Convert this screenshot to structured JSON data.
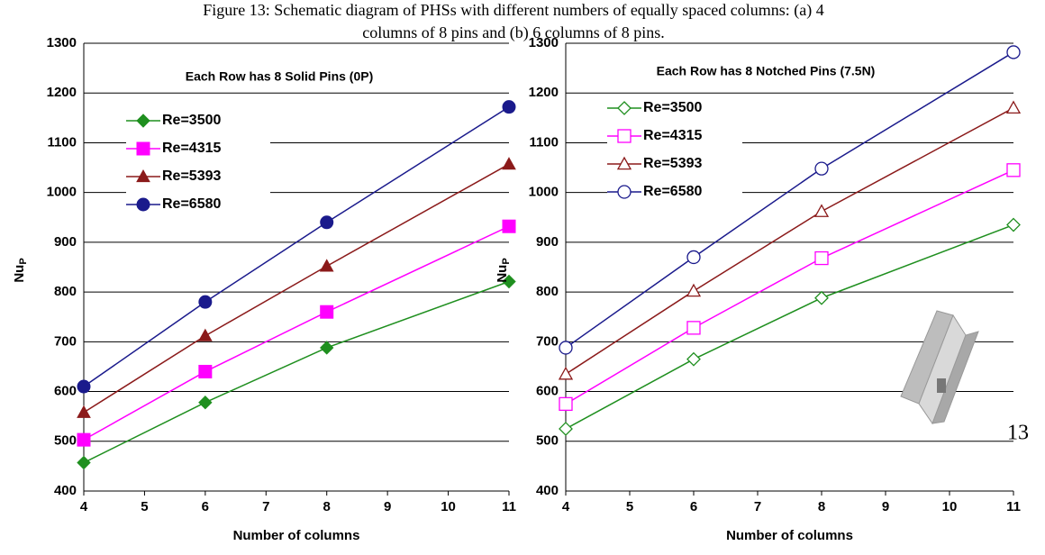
{
  "caption": [
    "Figure 13: Schematic diagram of PHSs with different numbers of equally spaced columns: (a) 4",
    "columns of 8 pins and (b) 6 columns of 8 pins."
  ],
  "page_number": "13",
  "chart_data": [
    {
      "type": "line",
      "title": "Each Row has 8 Solid Pins (0P)",
      "x_label": "Number of columns",
      "y_label": "Nu",
      "y_label_sub": "P",
      "marker_fill": "solid",
      "x": [
        4,
        6,
        8,
        11
      ],
      "xlim": [
        4,
        11
      ],
      "xticks": [
        4,
        5,
        6,
        7,
        8,
        9,
        10,
        11
      ],
      "ylim": [
        400,
        1300
      ],
      "yticks": [
        400,
        500,
        600,
        700,
        800,
        900,
        1000,
        1100,
        1200,
        1300
      ],
      "grid": true,
      "series": [
        {
          "name": "Re=3500",
          "color": "#1f8f1f",
          "marker": "diamond",
          "values": [
            457,
            578,
            688,
            821
          ]
        },
        {
          "name": "Re=4315",
          "color": "#ff00ff",
          "marker": "square",
          "values": [
            503,
            640,
            760,
            932
          ]
        },
        {
          "name": "Re=5393",
          "color": "#8b1a1a",
          "marker": "triangle",
          "values": [
            558,
            712,
            852,
            1057
          ]
        },
        {
          "name": "Re=6580",
          "color": "#1a1a8c",
          "marker": "circle",
          "values": [
            610,
            780,
            940,
            1172
          ]
        }
      ]
    },
    {
      "type": "line",
      "title": "Each Row has 8 Notched Pins (7.5N)",
      "x_label": "Number of columns",
      "y_label": "Nu",
      "y_label_sub": "P",
      "marker_fill": "hollow",
      "x": [
        4,
        6,
        8,
        11
      ],
      "xlim": [
        4,
        11
      ],
      "xticks": [
        4,
        5,
        6,
        7,
        8,
        9,
        10,
        11
      ],
      "ylim": [
        400,
        1300
      ],
      "yticks": [
        400,
        500,
        600,
        700,
        800,
        900,
        1000,
        1100,
        1200,
        1300
      ],
      "grid": true,
      "series": [
        {
          "name": "Re=3500",
          "color": "#1f8f1f",
          "marker": "diamond",
          "values": [
            525,
            665,
            788,
            935
          ]
        },
        {
          "name": "Re=4315",
          "color": "#ff00ff",
          "marker": "square",
          "values": [
            575,
            728,
            868,
            1045
          ]
        },
        {
          "name": "Re=5393",
          "color": "#8b1a1a",
          "marker": "triangle",
          "values": [
            635,
            802,
            962,
            1170
          ]
        },
        {
          "name": "Re=6580",
          "color": "#1a1a8c",
          "marker": "circle",
          "values": [
            688,
            870,
            1048,
            1282
          ]
        }
      ]
    }
  ]
}
